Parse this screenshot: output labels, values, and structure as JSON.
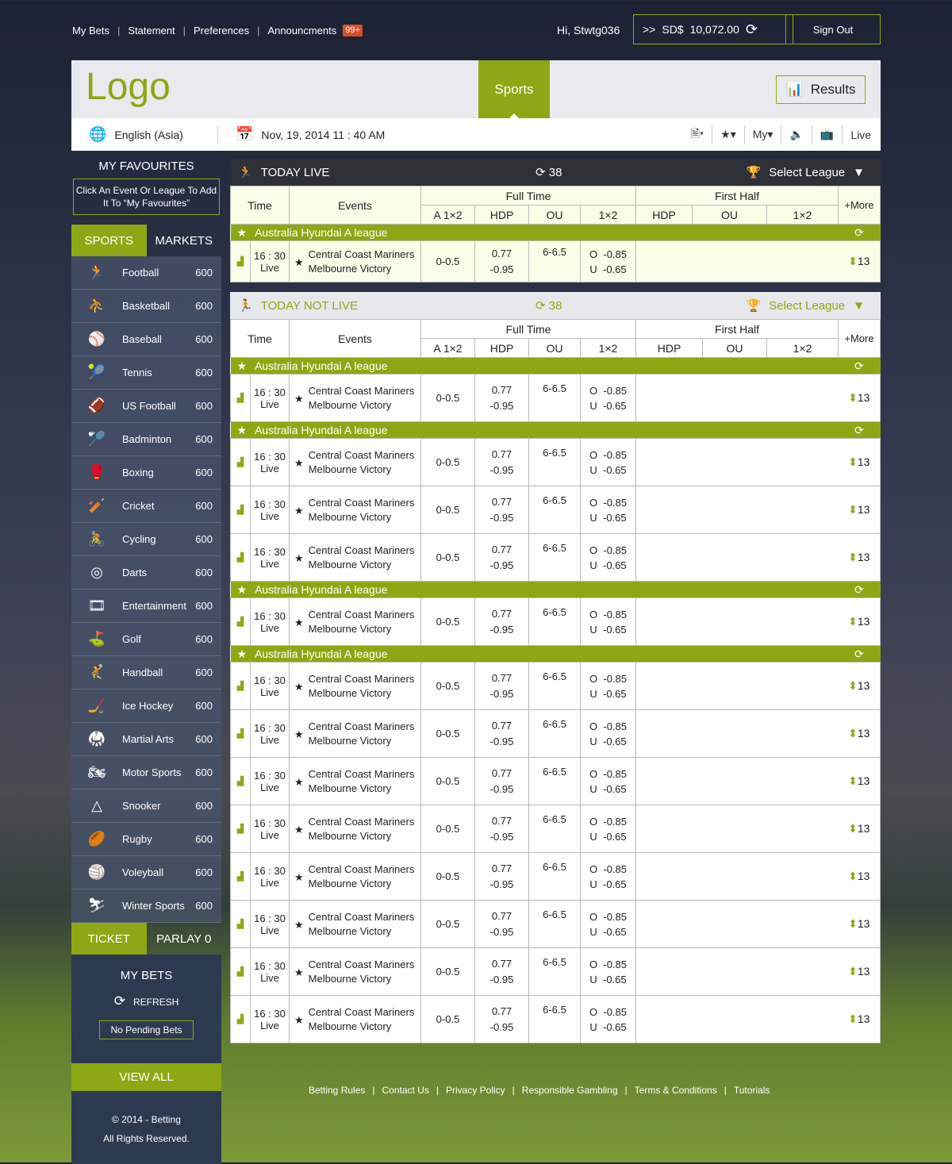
{
  "top": {
    "links": [
      "My Bets",
      "Statement",
      "Preferences",
      "Announcments"
    ],
    "badge": "99+",
    "greeting": "Hi, Stwtg036",
    "balance_prefix": ">>",
    "currency": "SD$",
    "balance": "10,072.00",
    "sign_out": "Sign Out"
  },
  "header": {
    "logo": "Logo",
    "sports_tab": "Sports",
    "results": "Results",
    "language": "English (Asia)",
    "datetime": "Nov, 19, 2014 11 : 40 AM",
    "my": "My",
    "live": "Live"
  },
  "sidebar": {
    "fav_title": "MY FAVOURITES",
    "fav_hint": "Click An Event Or League To Add It To “My Favourites”",
    "tab_sports": "SPORTS",
    "tab_markets": "MARKETS",
    "sports": [
      {
        "name": "Football",
        "count": "600",
        "icon": "🏃"
      },
      {
        "name": "Basketball",
        "count": "600",
        "icon": "⛹"
      },
      {
        "name": "Baseball",
        "count": "600",
        "icon": "⚾"
      },
      {
        "name": "Tennis",
        "count": "600",
        "icon": "🎾"
      },
      {
        "name": "US Football",
        "count": "600",
        "icon": "🏈"
      },
      {
        "name": "Badminton",
        "count": "600",
        "icon": "🏸"
      },
      {
        "name": "Boxing",
        "count": "600",
        "icon": "🥊"
      },
      {
        "name": "Cricket",
        "count": "600",
        "icon": "🏏"
      },
      {
        "name": "Cycling",
        "count": "600",
        "icon": "🚴"
      },
      {
        "name": "Darts",
        "count": "600",
        "icon": "◎"
      },
      {
        "name": "Entertainment",
        "count": "600",
        "icon": "🎞"
      },
      {
        "name": "Golf",
        "count": "600",
        "icon": "⛳"
      },
      {
        "name": "Handball",
        "count": "600",
        "icon": "🤾"
      },
      {
        "name": "Ice Hockey",
        "count": "600",
        "icon": "🏒"
      },
      {
        "name": "Martial Arts",
        "count": "600",
        "icon": "🥋"
      },
      {
        "name": "Motor Sports",
        "count": "600",
        "icon": "🏍"
      },
      {
        "name": "Snooker",
        "count": "600",
        "icon": "△"
      },
      {
        "name": "Rugby",
        "count": "600",
        "icon": "🏉"
      },
      {
        "name": "Voleyball",
        "count": "600",
        "icon": "🏐"
      },
      {
        "name": "Winter Sports",
        "count": "600",
        "icon": "⛷"
      }
    ],
    "tab_ticket": "TICKET",
    "tab_parlay": "PARLAY 0",
    "my_bets": "MY BETS",
    "refresh": "REFRESH",
    "no_pending": "No Pending Bets",
    "view_all": "VIEW ALL",
    "copyright": "© 2014 - Betting",
    "rights": "All Rights Reserved."
  },
  "columns": {
    "time": "Time",
    "events": "Events",
    "full_time": "Full Time",
    "first_half": "First Half",
    "more": "+More",
    "ft": [
      "A 1×2",
      "HDP",
      "OU",
      "1×2"
    ],
    "fh": [
      "HDP",
      "OU",
      "1×2"
    ]
  },
  "sections": [
    {
      "title": "TODAY LIVE",
      "count": "38",
      "select": "Select League",
      "groups": [
        {
          "league": "Australia Hyundai A league",
          "rows": [
            {
              "time": "16 : 30",
              "status": "Live",
              "home": "Central Coast Mariners",
              "away": "Melbourne Victory",
              "a12": "0-0.5",
              "hdp1": "0.77",
              "hdp2": "-0.95",
              "ou": "6-6.5",
              "o": "O  -0.85",
              "u": "U  -0.65",
              "more": "13"
            }
          ]
        }
      ]
    },
    {
      "title": "TODAY NOT LIVE",
      "count": "38",
      "select": "Select League",
      "groups": [
        {
          "league": "Australia Hyundai A league",
          "rows": [
            {
              "time": "16 : 30",
              "status": "Live",
              "home": "Central Coast Mariners",
              "away": "Melbourne Victory",
              "a12": "0-0.5",
              "hdp1": "0.77",
              "hdp2": "-0.95",
              "ou": "6-6.5",
              "o": "O  -0.85",
              "u": "U  -0.65",
              "more": "13"
            }
          ]
        },
        {
          "league": "Australia Hyundai A league",
          "rows": [
            {
              "time": "16 : 30",
              "status": "Live",
              "home": "Central Coast Mariners",
              "away": "Melbourne Victory",
              "a12": "0-0.5",
              "hdp1": "0.77",
              "hdp2": "-0.95",
              "ou": "6-6.5",
              "o": "O  -0.85",
              "u": "U  -0.65",
              "more": "13"
            },
            {
              "time": "16 : 30",
              "status": "Live",
              "home": "Central Coast Mariners",
              "away": "Melbourne Victory",
              "a12": "0-0.5",
              "hdp1": "0.77",
              "hdp2": "-0.95",
              "ou": "6-6.5",
              "o": "O  -0.85",
              "u": "U  -0.65",
              "more": "13"
            },
            {
              "time": "16 : 30",
              "status": "Live",
              "home": "Central Coast Mariners",
              "away": "Melbourne Victory",
              "a12": "0-0.5",
              "hdp1": "0.77",
              "hdp2": "-0.95",
              "ou": "6-6.5",
              "o": "O  -0.85",
              "u": "U  -0.65",
              "more": "13"
            }
          ]
        },
        {
          "league": "Australia Hyundai A league",
          "rows": [
            {
              "time": "16 : 30",
              "status": "Live",
              "home": "Central Coast Mariners",
              "away": "Melbourne Victory",
              "a12": "0-0.5",
              "hdp1": "0.77",
              "hdp2": "-0.95",
              "ou": "6-6.5",
              "o": "O  -0.85",
              "u": "U  -0.65",
              "more": "13"
            }
          ]
        },
        {
          "league": "Australia Hyundai A league",
          "rows": [
            {
              "time": "16 : 30",
              "status": "Live",
              "home": "Central Coast Mariners",
              "away": "Melbourne Victory",
              "a12": "0-0.5",
              "hdp1": "0.77",
              "hdp2": "-0.95",
              "ou": "6-6.5",
              "o": "O  -0.85",
              "u": "U  -0.65",
              "more": "13"
            },
            {
              "time": "16 : 30",
              "status": "Live",
              "home": "Central Coast Mariners",
              "away": "Melbourne Victory",
              "a12": "0-0.5",
              "hdp1": "0.77",
              "hdp2": "-0.95",
              "ou": "6-6.5",
              "o": "O  -0.85",
              "u": "U  -0.65",
              "more": "13"
            },
            {
              "time": "16 : 30",
              "status": "Live",
              "home": "Central Coast Mariners",
              "away": "Melbourne Victory",
              "a12": "0-0.5",
              "hdp1": "0.77",
              "hdp2": "-0.95",
              "ou": "6-6.5",
              "o": "O  -0.85",
              "u": "U  -0.65",
              "more": "13"
            },
            {
              "time": "16 : 30",
              "status": "Live",
              "home": "Central Coast Mariners",
              "away": "Melbourne Victory",
              "a12": "0-0.5",
              "hdp1": "0.77",
              "hdp2": "-0.95",
              "ou": "6-6.5",
              "o": "O  -0.85",
              "u": "U  -0.65",
              "more": "13"
            },
            {
              "time": "16 : 30",
              "status": "Live",
              "home": "Central Coast Mariners",
              "away": "Melbourne Victory",
              "a12": "0-0.5",
              "hdp1": "0.77",
              "hdp2": "-0.95",
              "ou": "6-6.5",
              "o": "O  -0.85",
              "u": "U  -0.65",
              "more": "13"
            },
            {
              "time": "16 : 30",
              "status": "Live",
              "home": "Central Coast Mariners",
              "away": "Melbourne Victory",
              "a12": "0-0.5",
              "hdp1": "0.77",
              "hdp2": "-0.95",
              "ou": "6-6.5",
              "o": "O  -0.85",
              "u": "U  -0.65",
              "more": "13"
            },
            {
              "time": "16 : 30",
              "status": "Live",
              "home": "Central Coast Mariners",
              "away": "Melbourne Victory",
              "a12": "0-0.5",
              "hdp1": "0.77",
              "hdp2": "-0.95",
              "ou": "6-6.5",
              "o": "O  -0.85",
              "u": "U  -0.65",
              "more": "13"
            },
            {
              "time": "16 : 30",
              "status": "Live",
              "home": "Central Coast Mariners",
              "away": "Melbourne Victory",
              "a12": "0-0.5",
              "hdp1": "0.77",
              "hdp2": "-0.95",
              "ou": "6-6.5",
              "o": "O  -0.85",
              "u": "U  -0.65",
              "more": "13"
            }
          ]
        }
      ]
    }
  ],
  "footer": {
    "links": [
      "Betting Rules",
      "Contact Us",
      "Privacy Policy",
      "Responsible Gambling",
      "Terms & Conditions",
      "Tutorials"
    ]
  },
  "colors": {
    "accent": "#8da814",
    "badge": "#d4502b",
    "dark": "#2e3038"
  }
}
